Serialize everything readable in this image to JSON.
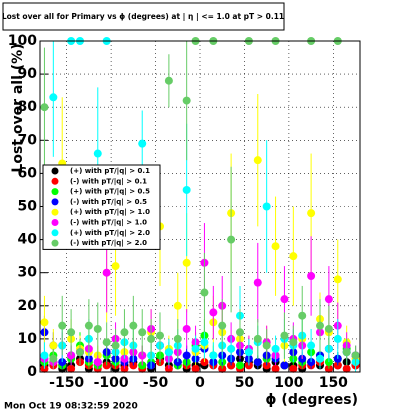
{
  "chart_data": {
    "type": "scatter",
    "title": "Lost over all for Primary vs ϕ (degrees) at | η | <= 1.0 at pT > 0.11",
    "x_label": "ϕ (degrees)",
    "y_label": "Lost over all (%)",
    "timestamp": "Mon Oct 19 08:32:59 2020",
    "xlim": [
      -180,
      180
    ],
    "ylim": [
      0,
      100
    ],
    "xticks": [
      -150,
      -100,
      -50,
      0,
      50,
      100,
      150
    ],
    "yticks": [
      0,
      10,
      20,
      30,
      40,
      50,
      60,
      70,
      80,
      90,
      100
    ],
    "grid": true,
    "legend": "left",
    "x": [
      -175,
      -165,
      -155,
      -145,
      -135,
      -125,
      -115,
      -105,
      -95,
      -85,
      -75,
      -65,
      -55,
      -45,
      -35,
      -25,
      -15,
      -5,
      5,
      15,
      25,
      35,
      45,
      55,
      65,
      75,
      85,
      95,
      105,
      115,
      125,
      135,
      145,
      155,
      165,
      175
    ],
    "series": [
      {
        "name": "(+) with pT/|q| > 0.1",
        "color": "#000000",
        "values": [
          2,
          3,
          1,
          2,
          4,
          1,
          2,
          3,
          1,
          2,
          3,
          2,
          1,
          4,
          2,
          3,
          1,
          2,
          2,
          3,
          1,
          2,
          4,
          3,
          2,
          1,
          3,
          2,
          2,
          1,
          3,
          2,
          1,
          2,
          3,
          2
        ],
        "errors": [
          1,
          1,
          1,
          1,
          2,
          1,
          1,
          1,
          1,
          1,
          1,
          1,
          1,
          2,
          1,
          1,
          1,
          1,
          1,
          1,
          1,
          1,
          2,
          1,
          1,
          1,
          1,
          1,
          1,
          1,
          1,
          1,
          1,
          1,
          1,
          1
        ]
      },
      {
        "name": "(-) with pT/|q| > 0.1",
        "color": "#ff0000",
        "values": [
          1,
          2,
          2,
          1,
          3,
          2,
          1,
          2,
          2,
          1,
          2,
          1,
          2,
          3,
          1,
          2,
          2,
          1,
          3,
          2,
          1,
          2,
          1,
          2,
          3,
          2,
          1,
          2,
          1,
          2,
          2,
          3,
          1,
          2,
          1,
          2
        ],
        "errors": [
          1,
          1,
          1,
          1,
          1,
          1,
          1,
          1,
          1,
          1,
          1,
          1,
          1,
          1,
          1,
          1,
          1,
          1,
          1,
          1,
          1,
          1,
          1,
          1,
          1,
          1,
          1,
          1,
          1,
          1,
          1,
          1,
          1,
          1,
          1,
          1
        ]
      },
      {
        "name": "(+) with pT/|q| > 0.5",
        "color": "#00ff00",
        "values": [
          3,
          5,
          2,
          4,
          8,
          3,
          2,
          5,
          3,
          4,
          6,
          2,
          3,
          5,
          4,
          2,
          3,
          8,
          11,
          5,
          3,
          4,
          2,
          6,
          3,
          4,
          5,
          2,
          4,
          3,
          6,
          5,
          3,
          4,
          7,
          5
        ],
        "errors": [
          2,
          3,
          1,
          2,
          4,
          2,
          1,
          3,
          2,
          2,
          3,
          1,
          2,
          3,
          2,
          1,
          2,
          4,
          5,
          3,
          2,
          2,
          1,
          3,
          2,
          2,
          3,
          1,
          2,
          2,
          3,
          3,
          2,
          2,
          3,
          3
        ]
      },
      {
        "name": "(-) with pT/|q| > 0.5",
        "color": "#0000ff",
        "values": [
          12,
          8,
          3,
          5,
          6,
          4,
          3,
          6,
          4,
          3,
          4,
          5,
          2,
          8,
          6,
          3,
          5,
          4,
          7,
          3,
          5,
          4,
          6,
          4,
          3,
          5,
          4,
          2,
          6,
          4,
          3,
          5,
          7,
          4,
          6,
          5
        ],
        "errors": [
          5,
          4,
          2,
          3,
          3,
          2,
          2,
          3,
          2,
          2,
          2,
          3,
          1,
          4,
          3,
          2,
          3,
          2,
          3,
          2,
          3,
          2,
          3,
          2,
          2,
          3,
          2,
          1,
          3,
          2,
          2,
          3,
          3,
          2,
          3,
          3
        ]
      },
      {
        "name": "(+) with pT/|q| > 1.0",
        "color": "#ffff00",
        "values": [
          15,
          8,
          63,
          10,
          7,
          6,
          5,
          30,
          32,
          6,
          8,
          5,
          12,
          44,
          7,
          20,
          33,
          6,
          8,
          15,
          12,
          48,
          10,
          7,
          64,
          9,
          38,
          8,
          35,
          10,
          48,
          16,
          12,
          28,
          9,
          4
        ],
        "errors": [
          8,
          5,
          20,
          6,
          4,
          4,
          3,
          15,
          15,
          4,
          5,
          3,
          7,
          18,
          4,
          10,
          15,
          4,
          5,
          8,
          7,
          18,
          6,
          4,
          20,
          5,
          15,
          5,
          15,
          6,
          18,
          8,
          7,
          12,
          5,
          3
        ]
      },
      {
        "name": "(-) with pT/|q| > 1.0",
        "color": "#ff00ff",
        "values": [
          4,
          3,
          8,
          5,
          6,
          7,
          3,
          30,
          10,
          4,
          6,
          5,
          13,
          8,
          4,
          6,
          13,
          9,
          33,
          18,
          20,
          10,
          8,
          7,
          27,
          9,
          5,
          22,
          10,
          8,
          29,
          12,
          22,
          14,
          8,
          5
        ],
        "errors": [
          3,
          2,
          4,
          3,
          3,
          4,
          2,
          12,
          5,
          3,
          3,
          3,
          6,
          4,
          3,
          3,
          6,
          5,
          12,
          8,
          9,
          5,
          4,
          4,
          12,
          5,
          3,
          10,
          5,
          4,
          12,
          6,
          10,
          7,
          4,
          3
        ]
      },
      {
        "name": "(+) with pT/|q| > 2.0",
        "color": "#00ffff",
        "values": [
          5,
          83,
          8,
          100,
          100,
          10,
          66,
          100,
          6,
          9,
          8,
          69,
          5,
          8,
          6,
          8,
          55,
          7,
          9,
          5,
          8,
          7,
          17,
          6,
          9,
          50,
          7,
          10,
          8,
          11,
          8,
          4,
          7,
          10,
          6,
          3
        ],
        "errors": [
          4,
          18,
          5,
          0,
          0,
          6,
          20,
          0,
          4,
          5,
          5,
          10,
          4,
          5,
          4,
          5,
          20,
          4,
          5,
          4,
          5,
          4,
          9,
          4,
          5,
          20,
          4,
          6,
          5,
          6,
          5,
          3,
          4,
          6,
          4,
          3
        ]
      },
      {
        "name": "(-) with pT/|q| > 2.0",
        "color": "#66cc66",
        "values": [
          80,
          4,
          14,
          12,
          6,
          14,
          13,
          9,
          8,
          12,
          14,
          12,
          10,
          11,
          88,
          10,
          82,
          100,
          24,
          100,
          14,
          40,
          12,
          100,
          10,
          8,
          100,
          11,
          9,
          17,
          100,
          14,
          13,
          100,
          6,
          5
        ],
        "errors": [
          18,
          3,
          9,
          7,
          4,
          8,
          8,
          6,
          5,
          7,
          9,
          7,
          6,
          7,
          8,
          6,
          18,
          0,
          12,
          0,
          8,
          22,
          7,
          0,
          6,
          5,
          0,
          7,
          5,
          9,
          0,
          8,
          7,
          0,
          4,
          3
        ]
      }
    ]
  }
}
